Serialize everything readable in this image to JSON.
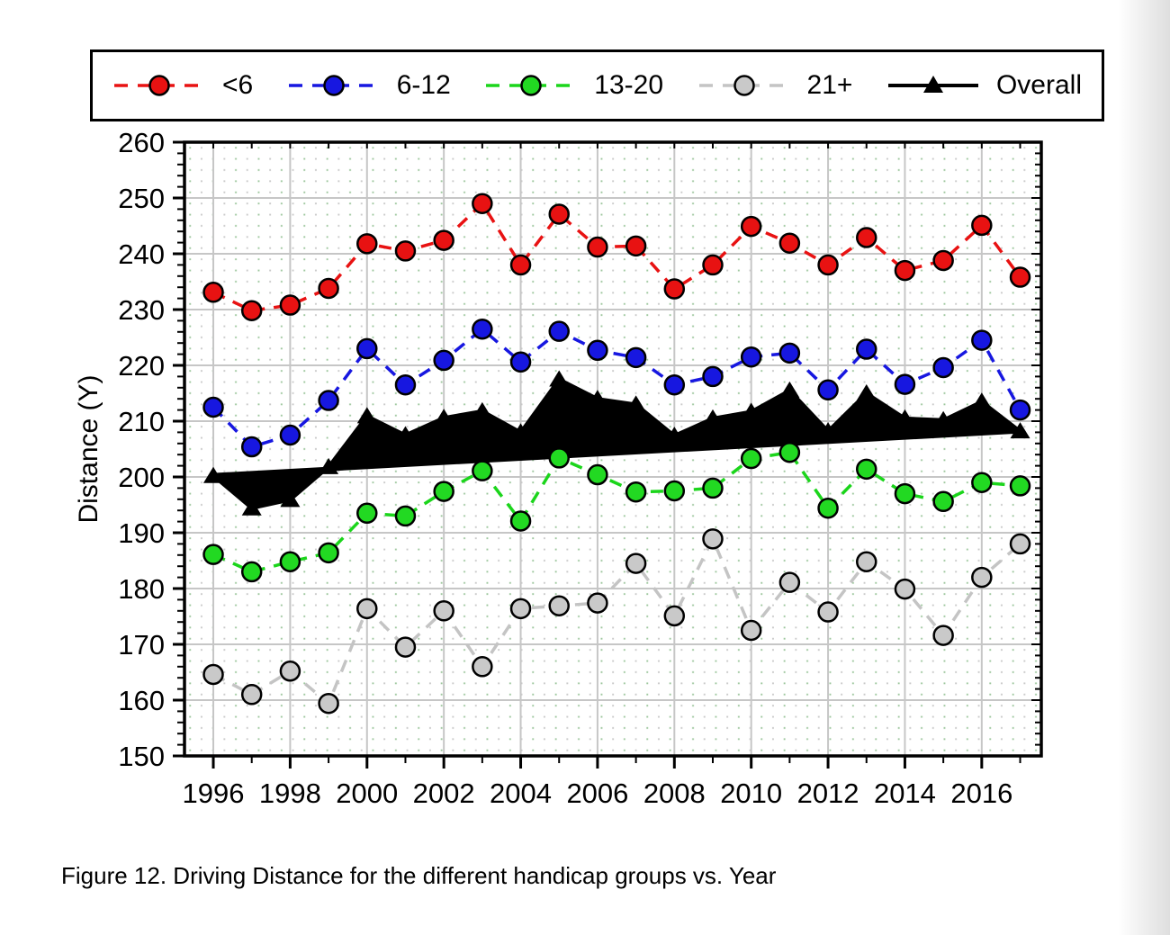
{
  "page": {
    "caption": "Figure 12. Driving Distance for the different handicap groups vs. Year"
  },
  "chart_data": {
    "type": "line",
    "title": "",
    "xlabel": "",
    "ylabel": "Distance (Y)",
    "ylim": [
      150,
      260
    ],
    "xlim": [
      1995.25,
      2017.55
    ],
    "grid": "major solid gray lines with dotted minor grid",
    "legend_position": "top",
    "x": [
      1996,
      1997,
      1998,
      1999,
      2000,
      2001,
      2002,
      2003,
      2004,
      2005,
      2006,
      2007,
      2008,
      2009,
      2010,
      2011,
      2012,
      2013,
      2014,
      2015,
      2016,
      2017
    ],
    "xticks": [
      1996,
      1998,
      2000,
      2002,
      2004,
      2006,
      2008,
      2010,
      2012,
      2014,
      2016
    ],
    "yticks": [
      150,
      160,
      170,
      180,
      190,
      200,
      210,
      220,
      230,
      240,
      250,
      260
    ],
    "series": [
      {
        "name": "<6",
        "color": "#e81212",
        "marker_fill": "#e81212",
        "marker": "circle",
        "line_style": "dashed",
        "values": [
          233.1,
          229.8,
          230.8,
          233.8,
          241.8,
          240.5,
          242.4,
          249.0,
          238.0,
          247.1,
          241.2,
          241.4,
          233.7,
          238.0,
          244.9,
          241.9,
          238.0,
          242.9,
          237.0,
          238.8,
          245.1,
          235.8
        ]
      },
      {
        "name": "6-12",
        "color": "#1717e0",
        "marker_fill": "#1717e0",
        "marker": "circle",
        "line_style": "dashed",
        "values": [
          212.5,
          205.4,
          207.5,
          213.7,
          223.0,
          216.5,
          220.9,
          226.5,
          220.6,
          226.1,
          222.7,
          221.4,
          216.5,
          218.0,
          221.5,
          222.2,
          215.6,
          222.9,
          216.6,
          219.6,
          224.5,
          212.0
        ]
      },
      {
        "name": "13-20",
        "color": "#1bd51b",
        "marker_fill": "#22d922",
        "marker": "circle",
        "line_style": "dashed",
        "values": [
          186.1,
          183.0,
          184.8,
          186.4,
          193.5,
          193.0,
          197.4,
          201.1,
          192.1,
          203.4,
          200.4,
          197.3,
          197.5,
          198.0,
          203.3,
          204.4,
          194.4,
          201.4,
          197.0,
          195.6,
          199.0,
          198.4
        ]
      },
      {
        "name": "21+",
        "color": "#c4c4c4",
        "marker_fill": "#c9c9c9",
        "marker": "circle",
        "line_style": "dashed",
        "values": [
          164.6,
          161.0,
          165.2,
          159.4,
          176.4,
          169.5,
          176.0,
          166.0,
          176.4,
          176.9,
          177.4,
          184.5,
          175.1,
          188.9,
          172.5,
          181.1,
          175.8,
          184.8,
          179.9,
          171.6,
          182.0,
          188.0
        ]
      },
      {
        "name": "Overall",
        "color": "#000000",
        "marker_fill": "#000000",
        "marker": "triangle",
        "line_style": "solid",
        "fill_to_trendline": true,
        "values": [
          200.2,
          194.4,
          195.9,
          201.8,
          210.9,
          207.5,
          210.6,
          211.8,
          208.0,
          217.5,
          214.0,
          213.0,
          207.4,
          210.5,
          211.7,
          215.5,
          208.2,
          215.0,
          210.5,
          210.2,
          213.5,
          208.2
        ]
      }
    ],
    "trendline": {
      "for_series": "Overall",
      "color": "#000000",
      "start": [
        1996,
        200.3
      ],
      "end": [
        2017,
        208.2
      ]
    }
  }
}
